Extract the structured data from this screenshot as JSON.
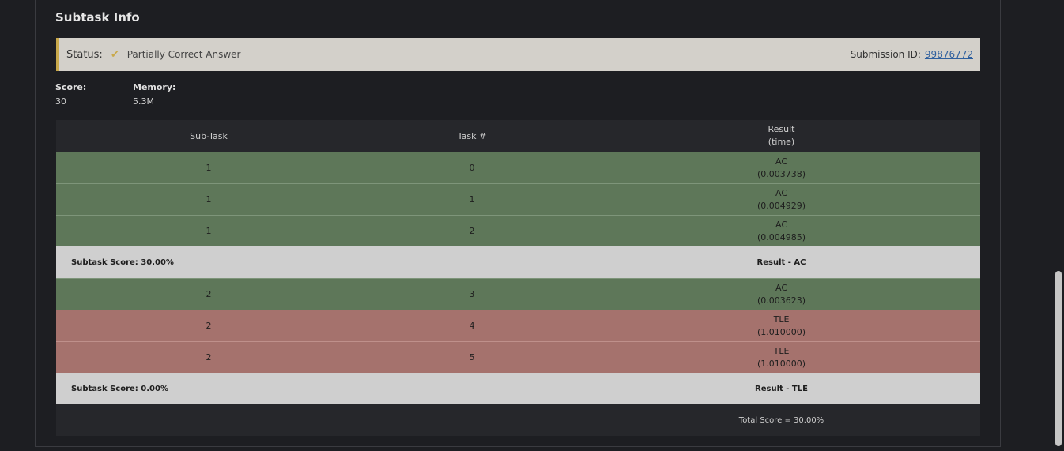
{
  "section_title": "Subtask Info",
  "status": {
    "label": "Status:",
    "icon": "check-icon",
    "text": "Partially Correct Answer",
    "submission_label": "Submission ID:",
    "submission_id": "99876772",
    "accent_color": "#c9a94b"
  },
  "stats": {
    "score_label": "Score:",
    "score_value": "30",
    "memory_label": "Memory:",
    "memory_value": "5.3M"
  },
  "table": {
    "headers": {
      "subtask": "Sub-Task",
      "task": "Task #",
      "result": "Result",
      "result_sub": "(time)"
    },
    "rows": [
      {
        "subtask": "1",
        "task": "0",
        "result": "AC",
        "time": "(0.003738)"
      },
      {
        "subtask": "1",
        "task": "1",
        "result": "AC",
        "time": "(0.004929)"
      },
      {
        "subtask": "1",
        "task": "2",
        "result": "AC",
        "time": "(0.004985)"
      },
      {
        "subtask": "2",
        "task": "3",
        "result": "AC",
        "time": "(0.003623)"
      },
      {
        "subtask": "2",
        "task": "4",
        "result": "TLE",
        "time": "(1.010000)"
      },
      {
        "subtask": "2",
        "task": "5",
        "result": "TLE",
        "time": "(1.010000)"
      }
    ],
    "summaries": [
      {
        "score": "Subtask Score: 30.00%",
        "result": "Result - AC"
      },
      {
        "score": "Subtask Score: 0.00%",
        "result": "Result - TLE"
      }
    ],
    "total": "Total Score = 30.00%"
  },
  "colors": {
    "ac": "#5e7759",
    "tle": "#a5726d"
  }
}
